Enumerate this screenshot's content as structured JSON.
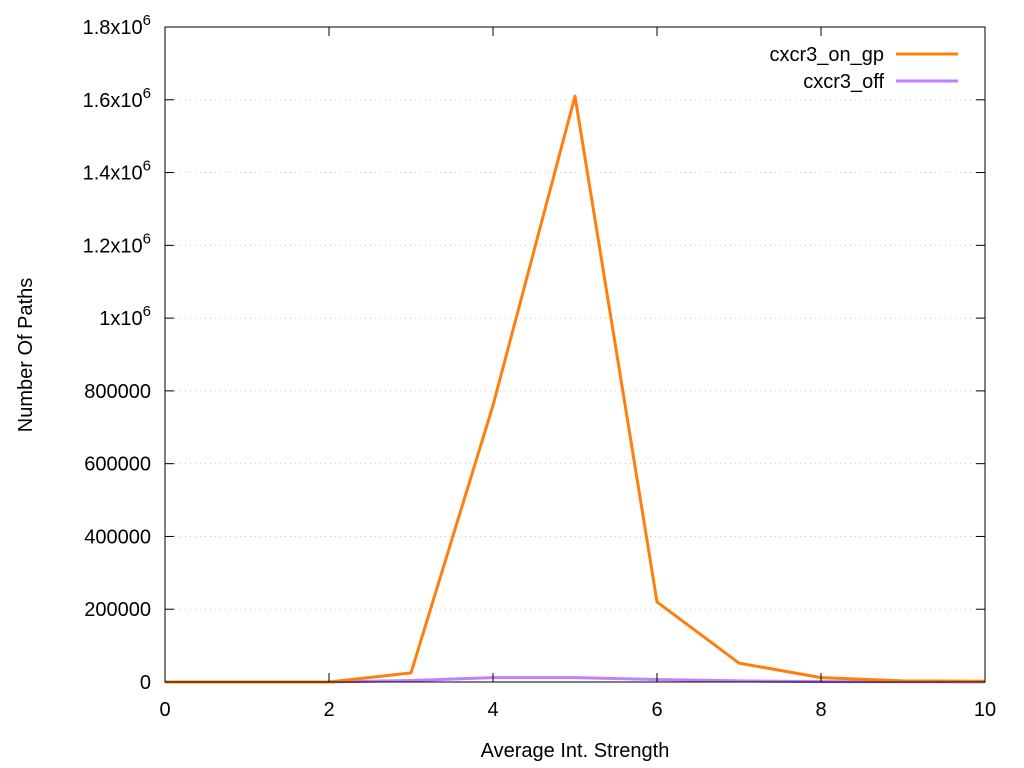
{
  "chart_data": {
    "type": "line",
    "xlabel": "Average Int. Strength",
    "ylabel": "Number Of Paths",
    "xlim": [
      0,
      10
    ],
    "ylim": [
      0,
      1800000
    ],
    "x_ticks": [
      0,
      2,
      4,
      6,
      8,
      10
    ],
    "y_ticks": [
      {
        "value": 0,
        "label": "0"
      },
      {
        "value": 200000,
        "label": "200000"
      },
      {
        "value": 400000,
        "label": "400000"
      },
      {
        "value": 600000,
        "label": "600000"
      },
      {
        "value": 800000,
        "label": "800000"
      },
      {
        "value": 1000000,
        "label": "1x10",
        "exp": "6"
      },
      {
        "value": 1200000,
        "label": "1.2x10",
        "exp": "6"
      },
      {
        "value": 1400000,
        "label": "1.4x10",
        "exp": "6"
      },
      {
        "value": 1600000,
        "label": "1.6x10",
        "exp": "6"
      },
      {
        "value": 1800000,
        "label": "1.8x10",
        "exp": "6"
      }
    ],
    "grid": "horizontal dotted",
    "legend_position": "top-right",
    "x": [
      0,
      1,
      2,
      3,
      4,
      5,
      6,
      7,
      8,
      9,
      10
    ],
    "series": [
      {
        "name": "cxcr3_on_gp",
        "color": "#ff7f0e",
        "values": [
          0,
          0,
          0,
          25000,
          760000,
          1610000,
          220000,
          52000,
          12000,
          3000,
          2000
        ]
      },
      {
        "name": "cxcr3_off",
        "color": "#c080ff",
        "values": [
          0,
          0,
          0,
          4000,
          12000,
          12000,
          7000,
          3000,
          1000,
          500,
          200
        ]
      }
    ]
  }
}
